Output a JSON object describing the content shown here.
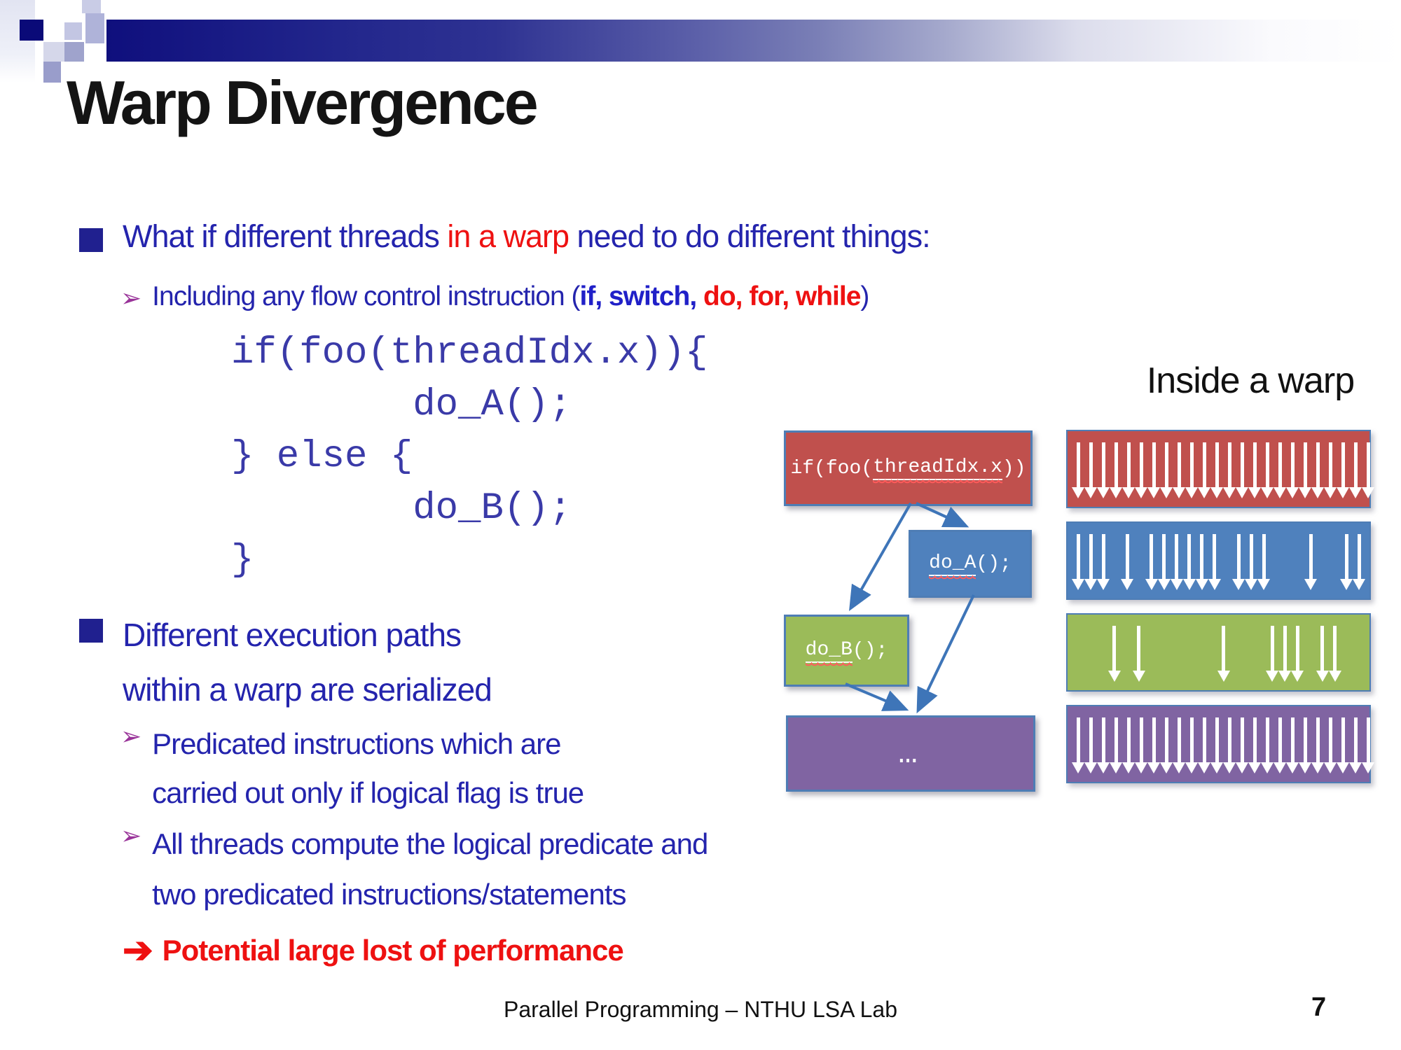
{
  "title": "Warp Divergence",
  "glyphs": {
    "sub_bullet_arrow": "➢",
    "conclusion_arrow": "➔"
  },
  "colors": {
    "body_blue": "#2424AD",
    "keyword_blue": "#2020C8",
    "accent_red": "#EE1111",
    "code_blue": "#3A3AA8",
    "bullet_navy": "#20208F",
    "sub_bullet_purple": "#993399",
    "box_red": "#C0504D",
    "box_blue": "#4F81BD",
    "box_green": "#9BBB59",
    "box_purple": "#8064A2",
    "connector_blue": "#3E75B8"
  },
  "content": {
    "b1": {
      "part1": "What if different threads ",
      "part2_red": "in a warp",
      "part3": " need to do different things:"
    },
    "sub1": {
      "part1": "Including any flow control instruction (",
      "part2_bold_blue": "if, switch,",
      "part3_bold_red": " do, for, while",
      "part4": ")"
    },
    "code_lines": [
      "if(foo(threadIdx.x)){",
      "        do_A();",
      "} else {",
      "        do_B();",
      "}"
    ],
    "b2": {
      "line1": "Different execution paths",
      "line2": "within a warp are serialized"
    },
    "sub2": {
      "line1": "Predicated instructions which are",
      "line2": "carried out only if logical flag is true"
    },
    "sub3": {
      "line1": "All threads compute the logical predicate and",
      "line2": "two predicated instructions/statements"
    },
    "conclusion": "Potential large lost of performance"
  },
  "diagram": {
    "label": "Inside a warp",
    "flow_boxes": {
      "if_box": {
        "pre": "if(foo(",
        "wavy": "threadIdx.x",
        "post": "))"
      },
      "do_a_box": {
        "wavy": "do_A",
        "post": "();"
      },
      "do_b_box": {
        "wavy": "do_B",
        "post": "();"
      },
      "rest_box": {
        "text": "…"
      }
    },
    "warp_bars": [
      {
        "id": "bar-if",
        "color": "#C0504D",
        "pattern": [
          1,
          1,
          1,
          1,
          1,
          1,
          1,
          1,
          1,
          1,
          1,
          1,
          1,
          1,
          1,
          1,
          1,
          1,
          1,
          1,
          1,
          1,
          1,
          1
        ]
      },
      {
        "id": "bar-do-a",
        "color": "#4F81BD",
        "pattern": [
          1,
          1,
          1,
          0,
          1,
          0,
          1,
          1,
          1,
          1,
          1,
          1,
          0,
          1,
          1,
          1,
          0,
          0,
          0,
          1,
          0,
          0,
          1,
          1
        ]
      },
      {
        "id": "bar-do-b",
        "color": "#9BBB59",
        "pattern": [
          0,
          0,
          0,
          1,
          0,
          1,
          0,
          0,
          0,
          0,
          0,
          0,
          1,
          0,
          0,
          0,
          1,
          1,
          1,
          0,
          1,
          1,
          0,
          0
        ]
      },
      {
        "id": "bar-rest",
        "color": "#8064A2",
        "pattern": [
          1,
          1,
          1,
          1,
          1,
          1,
          1,
          1,
          1,
          1,
          1,
          1,
          1,
          1,
          1,
          1,
          1,
          1,
          1,
          1,
          1,
          1,
          1,
          1
        ]
      }
    ]
  },
  "footer": {
    "center_text": "Parallel Programming – NTHU LSA Lab",
    "page_number": "7"
  }
}
